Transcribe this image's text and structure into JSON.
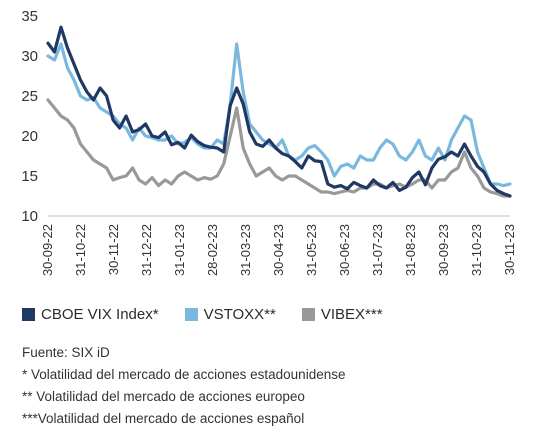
{
  "chart_data": {
    "type": "line",
    "x_ticks": [
      "30-09-22",
      "31-10-22",
      "30-11-22",
      "31-12-22",
      "31-01-23",
      "28-02-23",
      "31-03-23",
      "30-04-23",
      "31-05-23",
      "30-06-23",
      "31-07-23",
      "31-08-23",
      "30-09-23",
      "31-10-23",
      "30-11-23"
    ],
    "y_ticks": [
      "35",
      "30",
      "25",
      "20",
      "15",
      "10"
    ],
    "ylim": [
      10,
      35
    ],
    "grid": false,
    "legend_position": "bottom",
    "series": [
      {
        "name": "CBOE VIX Index*",
        "color": "#1f3864",
        "values": [
          31.6,
          30.5,
          33.6,
          31.0,
          29.0,
          27.0,
          25.5,
          24.5,
          26.0,
          25.0,
          22.0,
          21.0,
          22.5,
          20.5,
          20.8,
          21.5,
          20.0,
          19.8,
          20.5,
          18.9,
          19.2,
          18.5,
          20.1,
          19.3,
          18.8,
          18.6,
          18.5,
          18.0,
          23.8,
          26.0,
          24.0,
          20.5,
          19.0,
          18.7,
          19.5,
          18.5,
          17.8,
          17.5,
          16.8,
          16.0,
          17.5,
          16.9,
          16.8,
          14.0,
          13.6,
          13.8,
          13.4,
          14.2,
          13.8,
          13.5,
          14.5,
          13.8,
          13.5,
          14.2,
          13.2,
          13.6,
          14.8,
          15.5,
          13.9,
          16.0,
          17.1,
          17.4,
          18.0,
          17.5,
          19.0,
          17.5,
          16.2,
          15.5,
          14.0,
          13.2,
          12.8,
          12.5
        ]
      },
      {
        "name": "VSTOXX**",
        "color": "#7ab8de",
        "values": [
          30.0,
          29.5,
          31.5,
          28.5,
          27.0,
          25.0,
          24.5,
          24.8,
          23.5,
          23.0,
          22.5,
          21.5,
          21.0,
          19.5,
          21.0,
          20.0,
          19.8,
          19.5,
          19.5,
          20.0,
          19.0,
          19.2,
          19.8,
          19.0,
          18.5,
          18.5,
          19.5,
          19.0,
          24.0,
          31.5,
          25.5,
          21.5,
          20.5,
          19.5,
          19.0,
          18.5,
          19.5,
          17.5,
          17.0,
          17.5,
          18.5,
          18.8,
          18.0,
          17.0,
          15.0,
          16.2,
          16.5,
          16.0,
          17.5,
          17.0,
          17.0,
          18.5,
          19.5,
          19.0,
          17.5,
          17.0,
          18.0,
          19.5,
          17.5,
          17.0,
          18.5,
          17.0,
          19.5,
          21.0,
          22.5,
          22.0,
          18.0,
          16.0,
          14.0,
          14.0,
          13.8,
          14.0
        ]
      },
      {
        "name": "VIBEX***",
        "color": "#999999",
        "values": [
          24.5,
          23.5,
          22.5,
          22.0,
          21.0,
          19.0,
          18.0,
          17.0,
          16.5,
          16.0,
          14.5,
          14.8,
          15.0,
          16.0,
          14.5,
          14.0,
          14.8,
          13.8,
          14.5,
          14.0,
          15.0,
          15.5,
          15.0,
          14.5,
          14.8,
          14.6,
          15.0,
          16.5,
          20.0,
          23.5,
          18.5,
          16.5,
          15.0,
          15.5,
          16.0,
          15.0,
          14.5,
          15.0,
          15.0,
          14.5,
          14.0,
          13.5,
          13.0,
          13.0,
          12.8,
          13.0,
          13.2,
          13.0,
          13.5,
          13.5,
          14.0,
          14.0,
          13.5,
          13.8,
          14.0,
          13.6,
          14.0,
          14.5,
          14.5,
          13.5,
          14.5,
          14.5,
          15.5,
          16.0,
          18.0,
          16.0,
          15.0,
          13.5,
          13.0,
          12.8,
          12.5,
          12.5
        ]
      }
    ]
  },
  "notes": [
    "Fuente: SIX iD",
    "* Volatilidad del mercado de acciones estadounidense",
    "** Volatilidad del mercado de acciones europeo",
    "***Volatilidad del mercado de acciones español"
  ]
}
